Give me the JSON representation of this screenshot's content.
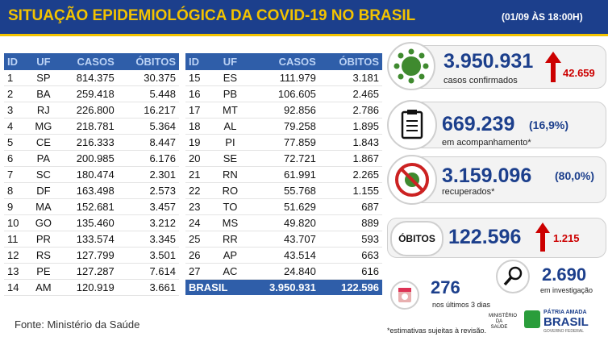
{
  "header": {
    "title": "SITUAÇÃO EPIDEMIOLÓGICA DA COVID-19 NO BRASIL",
    "date": "(01/09 ÀS 18:00H)"
  },
  "tables": [
    {
      "columns": [
        "ID",
        "UF",
        "CASOS",
        "ÓBITOS"
      ],
      "rows": [
        [
          "1",
          "SP",
          "814.375",
          "30.375"
        ],
        [
          "2",
          "BA",
          "259.418",
          "5.448"
        ],
        [
          "3",
          "RJ",
          "226.800",
          "16.217"
        ],
        [
          "4",
          "MG",
          "218.781",
          "5.364"
        ],
        [
          "5",
          "CE",
          "216.333",
          "8.447"
        ],
        [
          "6",
          "PA",
          "200.985",
          "6.176"
        ],
        [
          "7",
          "SC",
          "180.474",
          "2.301"
        ],
        [
          "8",
          "DF",
          "163.498",
          "2.573"
        ],
        [
          "9",
          "MA",
          "152.681",
          "3.457"
        ],
        [
          "10",
          "GO",
          "135.460",
          "3.212"
        ],
        [
          "11",
          "PR",
          "133.574",
          "3.345"
        ],
        [
          "12",
          "RS",
          "127.799",
          "3.501"
        ],
        [
          "13",
          "PE",
          "127.287",
          "7.614"
        ],
        [
          "14",
          "AM",
          "120.919",
          "3.661"
        ]
      ]
    },
    {
      "columns": [
        "ID",
        "UF",
        "CASOS",
        "ÓBITOS"
      ],
      "rows": [
        [
          "15",
          "ES",
          "111.979",
          "3.181"
        ],
        [
          "16",
          "PB",
          "106.605",
          "2.465"
        ],
        [
          "17",
          "MT",
          "92.856",
          "2.786"
        ],
        [
          "18",
          "AL",
          "79.258",
          "1.895"
        ],
        [
          "19",
          "PI",
          "77.859",
          "1.843"
        ],
        [
          "20",
          "SE",
          "72.721",
          "1.867"
        ],
        [
          "21",
          "RN",
          "61.991",
          "2.265"
        ],
        [
          "22",
          "RO",
          "55.768",
          "1.155"
        ],
        [
          "23",
          "TO",
          "51.629",
          "687"
        ],
        [
          "24",
          "MS",
          "49.820",
          "889"
        ],
        [
          "25",
          "RR",
          "43.707",
          "593"
        ],
        [
          "26",
          "AP",
          "43.514",
          "663"
        ],
        [
          "27",
          "AC",
          "24.840",
          "616"
        ]
      ],
      "total": [
        "BRASIL",
        "3.950.931",
        "122.596"
      ]
    }
  ],
  "cards": {
    "confirmed": {
      "value": "3.950.931",
      "label": "casos confirmados",
      "new": "42.659"
    },
    "monitoring": {
      "value": "669.239",
      "percent": "(16,9%)",
      "label": "em acompanhamento*"
    },
    "recovered": {
      "value": "3.159.096",
      "percent": "(80,0%)",
      "label": "recuperados*"
    },
    "deaths": {
      "title": "ÓBITOS",
      "value": "122.596",
      "new": "1.215"
    },
    "investigation": {
      "value": "2.690",
      "label": "em investigação"
    },
    "recent": {
      "value": "276",
      "label": "nos últimos 3 dias"
    }
  },
  "footer": {
    "source": "Fonte: Ministério da Saúde",
    "note": "*estimativas sujeitas à revisão.",
    "ministry": "MINISTÉRIO DA SAÚDE",
    "motto": "PÁTRIA AMADA",
    "brand": "BRASIL",
    "gov": "GOVERNO FEDERAL"
  }
}
